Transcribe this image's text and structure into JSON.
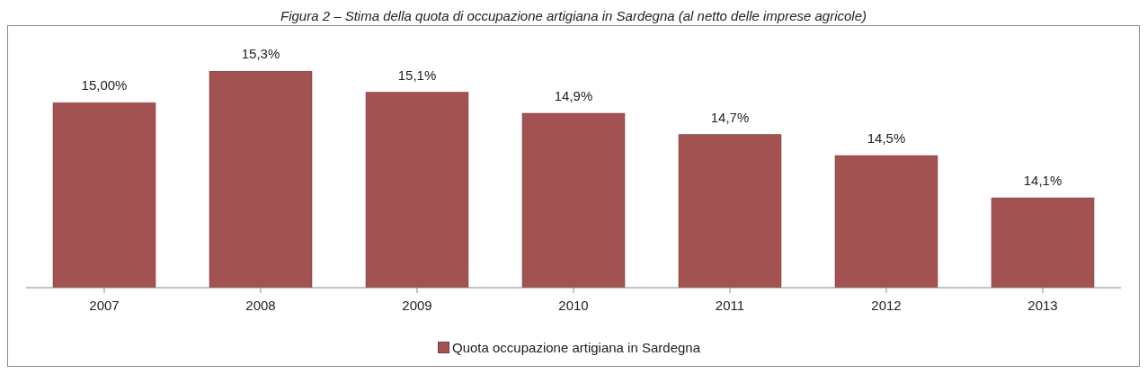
{
  "chart_data": {
    "type": "bar",
    "title": "Figura 2 – Stima della quota di occupazione artigiana in Sardegna (al netto delle imprese agricole)",
    "categories": [
      "2007",
      "2008",
      "2009",
      "2010",
      "2011",
      "2012",
      "2013"
    ],
    "series": [
      {
        "name": "Quota occupazione artigiana in Sardegna",
        "color": "#a35252",
        "values": [
          15.0,
          15.3,
          15.1,
          14.9,
          14.7,
          14.5,
          14.1
        ],
        "value_labels": [
          "15,00%",
          "15,3%",
          "15,1%",
          "14,9%",
          "14,7%",
          "14,5%",
          "14,1%"
        ]
      }
    ],
    "ylim": [
      13.25,
      15.3
    ],
    "grid": false,
    "legend": "bottom"
  }
}
